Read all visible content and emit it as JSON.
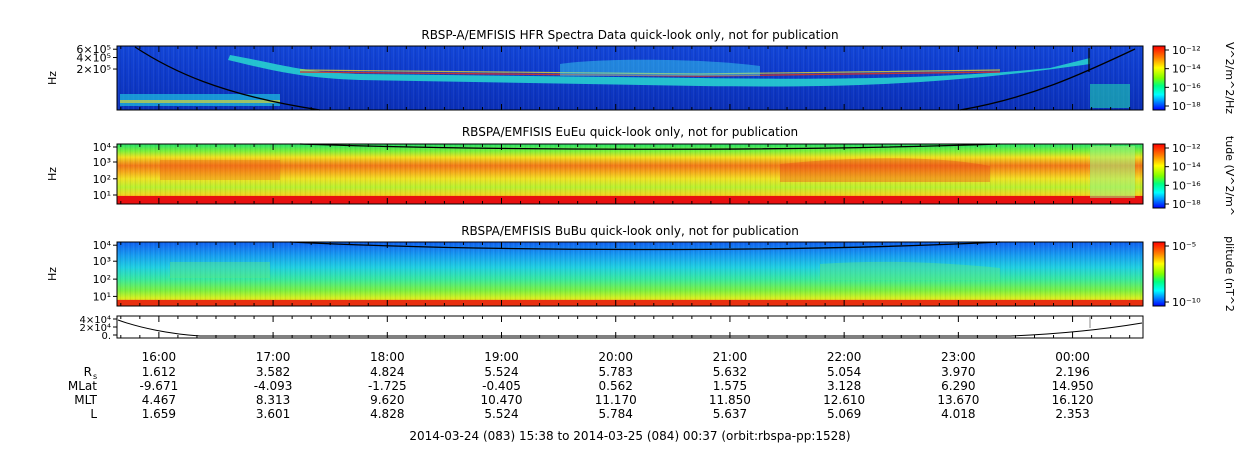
{
  "chart_data": {
    "type": "heatmap",
    "panels": [
      {
        "id": "hfr",
        "title": "RBSP-A/EMFISIS  HFR Spectra Data quick-look only, not for publication",
        "ylabel": "Hz",
        "ytick_labels": [
          "6×10⁵",
          "4×10⁵",
          "2×10⁵"
        ],
        "ytick_pos": [
          0.05,
          0.18,
          0.36
        ],
        "colorbar_label": "V^2/m^2/Hz",
        "colorbar_ticks": [
          "10⁻¹²",
          "10⁻¹⁴",
          "10⁻¹⁶",
          "10⁻¹⁸"
        ],
        "colorbar_range_exp": [
          -12,
          -18
        ]
      },
      {
        "id": "eueu",
        "title": "RBSPA/EMFISIS  EuEu quick-look only, not for publication",
        "ylabel": "Hz",
        "ytick_labels": [
          "10⁴",
          "10³",
          "10²",
          "10¹"
        ],
        "ytick_pos": [
          0.05,
          0.3,
          0.58,
          0.85
        ],
        "colorbar_label": "tude (V^2/m^",
        "colorbar_ticks": [
          "10⁻¹²",
          "10⁻¹⁴",
          "10⁻¹⁶",
          "10⁻¹⁸"
        ],
        "colorbar_range_exp": [
          -12,
          -18
        ]
      },
      {
        "id": "bubu",
        "title": "RBSPA/EMFISIS  BuBu quick-look only, not for publication",
        "ylabel": "Hz",
        "ytick_labels": [
          "10⁴",
          "10³",
          "10²",
          "10¹"
        ],
        "ytick_pos": [
          0.05,
          0.3,
          0.58,
          0.85
        ],
        "colorbar_label": "plitude (nT^2",
        "colorbar_ticks": [
          "10⁻⁵",
          "10⁻¹⁰"
        ],
        "colorbar_range_exp": [
          -5,
          -10
        ]
      }
    ],
    "line_panel": {
      "ytick_labels": [
        "4×10⁴",
        "2×10⁴",
        "0."
      ]
    },
    "x_axis": {
      "start": "15:38",
      "end": "00:37",
      "tick_labels": [
        "16:00",
        "17:00",
        "18:00",
        "19:00",
        "20:00",
        "21:00",
        "22:00",
        "23:00",
        "00:00"
      ]
    },
    "ephemeris": [
      {
        "label": "R",
        "subscript": "s",
        "values": [
          "1.612",
          "3.582",
          "4.824",
          "5.524",
          "5.783",
          "5.632",
          "5.054",
          "3.970",
          "2.196"
        ]
      },
      {
        "label": "MLat",
        "subscript": "",
        "values": [
          "-9.671",
          "-4.093",
          "-1.725",
          "-0.405",
          "0.562",
          "1.575",
          "3.128",
          "6.290",
          "14.950"
        ]
      },
      {
        "label": "MLT",
        "subscript": "",
        "values": [
          "4.467",
          "8.313",
          "9.620",
          "10.470",
          "11.170",
          "11.850",
          "12.610",
          "13.670",
          "16.120"
        ]
      },
      {
        "label": "L",
        "subscript": "",
        "values": [
          "1.659",
          "3.601",
          "4.828",
          "5.524",
          "5.784",
          "5.637",
          "5.069",
          "4.018",
          "2.353"
        ]
      }
    ],
    "footer": "2014-03-24 (083) 15:38 to 2014-03-25 (084) 00:37 (orbit:rbspa-pp:1528)"
  }
}
